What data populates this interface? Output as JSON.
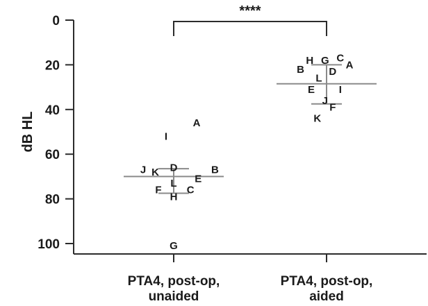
{
  "chart_data": {
    "type": "scatter",
    "ylabel": "dB HL",
    "ylim": [
      0,
      105
    ],
    "y_inverted": true,
    "yticks": [
      0,
      20,
      40,
      60,
      80,
      100
    ],
    "categories": [
      {
        "lines": [
          "PTA4, post-op,",
          "unaided"
        ]
      },
      {
        "lines": [
          "PTA4, post-op,",
          "aided"
        ]
      }
    ],
    "groups": [
      {
        "category": 0,
        "mean": 70,
        "sd_low": 66.5,
        "sd_high": 77.5,
        "points": [
          {
            "label": "A",
            "y": 46,
            "offset": 0.15
          },
          {
            "label": "I",
            "y": 52,
            "offset": -0.05
          },
          {
            "label": "J",
            "y": 67,
            "offset": -0.2
          },
          {
            "label": "K",
            "y": 68,
            "offset": -0.12
          },
          {
            "label": "D",
            "y": 66,
            "offset": 0.0
          },
          {
            "label": "B",
            "y": 67,
            "offset": 0.27
          },
          {
            "label": "E",
            "y": 71,
            "offset": 0.16
          },
          {
            "label": "L",
            "y": 73,
            "offset": 0.0
          },
          {
            "label": "F",
            "y": 76,
            "offset": -0.1
          },
          {
            "label": "C",
            "y": 76,
            "offset": 0.11
          },
          {
            "label": "H",
            "y": 79,
            "offset": 0.0
          },
          {
            "label": "G",
            "y": 101,
            "offset": 0.0
          }
        ]
      },
      {
        "category": 1,
        "mean": 28.5,
        "sd_low": 20,
        "sd_high": 37.5,
        "points": [
          {
            "label": "H",
            "y": 18,
            "offset": -0.11
          },
          {
            "label": "G",
            "y": 18,
            "offset": -0.01
          },
          {
            "label": "C",
            "y": 17,
            "offset": 0.09
          },
          {
            "label": "A",
            "y": 20,
            "offset": 0.15
          },
          {
            "label": "B",
            "y": 22,
            "offset": -0.17
          },
          {
            "label": "D",
            "y": 23,
            "offset": 0.04
          },
          {
            "label": "L",
            "y": 26,
            "offset": -0.05
          },
          {
            "label": "E",
            "y": 31,
            "offset": -0.1
          },
          {
            "label": "I",
            "y": 31,
            "offset": 0.09
          },
          {
            "label": "J",
            "y": 36,
            "offset": -0.01
          },
          {
            "label": "F",
            "y": 39,
            "offset": 0.04
          },
          {
            "label": "K",
            "y": 44,
            "offset": -0.06
          }
        ]
      }
    ],
    "significance": {
      "text": "****",
      "between": [
        0,
        1
      ]
    }
  }
}
